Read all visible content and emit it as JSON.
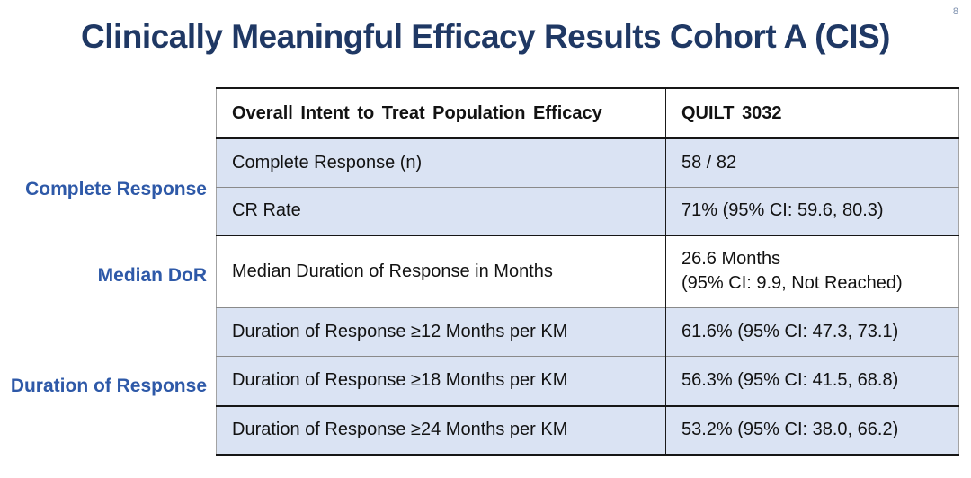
{
  "page_number": "8",
  "title": "Clinically Meaningful Efficacy Results Cohort A (CIS)",
  "side_labels": {
    "complete_response": "Complete Response",
    "median_dor": "Median DoR",
    "duration_of_response": "Duration of Response"
  },
  "table": {
    "headers": {
      "metric": "Overall Intent to Treat Population Efficacy",
      "study": "QUILT 3032"
    },
    "rows": [
      {
        "metric": "Complete Response (n)",
        "value": "58 / 82"
      },
      {
        "metric": "CR Rate",
        "value": "71% (95% CI: 59.6, 80.3)"
      },
      {
        "metric": "Median Duration of Response in Months",
        "value": "26.6 Months\n(95% CI: 9.9, Not Reached)"
      },
      {
        "metric": "Duration of Response ≥12 Months per KM",
        "value": "61.6% (95% CI: 47.3, 73.1)"
      },
      {
        "metric": "Duration of Response ≥18 Months per KM",
        "value": "56.3% (95% CI: 41.5, 68.8)"
      },
      {
        "metric": "Duration of Response ≥24 Months per KM",
        "value": "53.2% (95% CI: 38.0, 66.2)"
      }
    ]
  },
  "colors": {
    "title_navy": "#1f3864",
    "side_label_blue": "#2e59a8",
    "row_shade_blue": "#dae3f3",
    "border_dark": "#161616",
    "border_gray": "#8a8a8a",
    "page_number_gray_blue": "#7d90ae"
  }
}
